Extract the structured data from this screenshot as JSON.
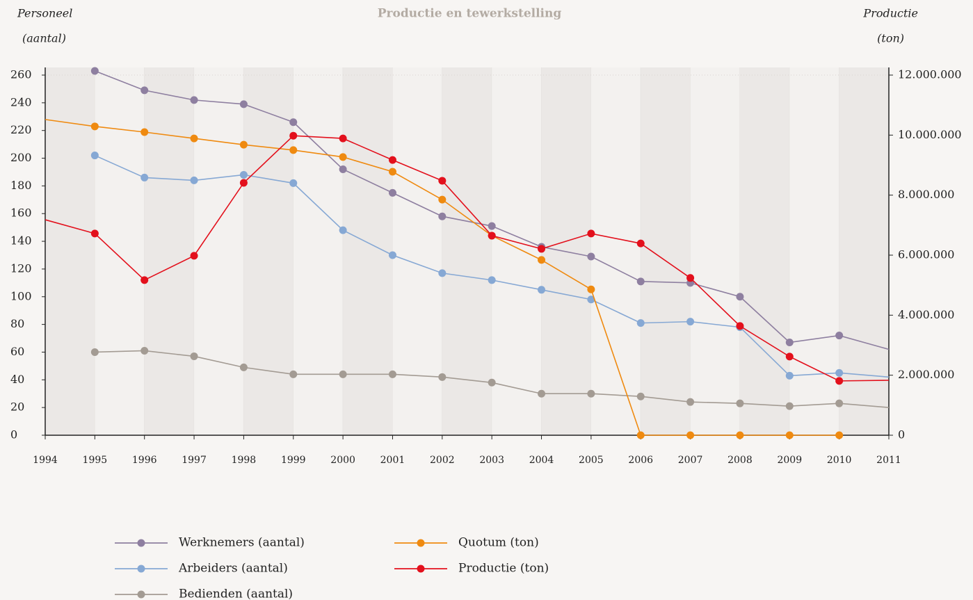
{
  "chart_data": {
    "type": "line",
    "title": "Productie en tewerkstelling",
    "y_label": [
      "Personeel",
      "(aantal)"
    ],
    "y2_label": [
      "Productie",
      "(ton)"
    ],
    "x": [
      1994,
      1995,
      1996,
      1997,
      1998,
      1999,
      2000,
      2001,
      2002,
      2003,
      2004,
      2005,
      2006,
      2007,
      2008,
      2009,
      2010,
      2011
    ],
    "xlim": [
      1994,
      2011
    ],
    "xticks": [
      1994,
      1995,
      1996,
      1997,
      1998,
      1999,
      2000,
      2001,
      2002,
      2003,
      2004,
      2005,
      2006,
      2007,
      2008,
      2009,
      2010,
      2011
    ],
    "ylim": [
      0,
      260
    ],
    "yticks": [
      0,
      20,
      40,
      60,
      80,
      100,
      120,
      140,
      160,
      180,
      200,
      220,
      240,
      260
    ],
    "y2lim": [
      0,
      12000000
    ],
    "y2ticks": [
      {
        "value": 0,
        "label": "0"
      },
      {
        "value": 2000000,
        "label": "2.000.000"
      },
      {
        "value": 4000000,
        "label": "4.000.000"
      },
      {
        "value": 6000000,
        "label": "6.000.000"
      },
      {
        "value": 8000000,
        "label": "8.000.000"
      },
      {
        "value": 10000000,
        "label": "10.000.000"
      },
      {
        "value": 12000000,
        "label": "12.000.000"
      }
    ],
    "legend": "bottom",
    "series": [
      {
        "name": "Werknemers (aantal)",
        "color": "#8e7fa0",
        "values": [
          null,
          263,
          249,
          242,
          239,
          226,
          192,
          175,
          158,
          151,
          136,
          129,
          111,
          110,
          100,
          67,
          72,
          62
        ]
      },
      {
        "name": "Arbeiders (aantal)",
        "color": "#86a8d4",
        "values": [
          null,
          202,
          186,
          184,
          188,
          182,
          148,
          130,
          117,
          112,
          105,
          98,
          81,
          82,
          78,
          43,
          45,
          42
        ]
      },
      {
        "name": "Bedienden (aantal)",
        "color": "#a39b93",
        "values": [
          null,
          60,
          61,
          57,
          49,
          44,
          44,
          44,
          42,
          38,
          30,
          30,
          28,
          24,
          23,
          21,
          23,
          20
        ]
      },
      {
        "name": "Quotum (ton)",
        "color": "#ef8a10",
        "axis": "y2",
        "values": [
          10520000,
          10290000,
          10100000,
          9890000,
          9680000,
          9500000,
          9270000,
          8780000,
          7850000,
          6650000,
          5840000,
          4860000,
          0,
          0,
          0,
          0,
          0,
          null
        ]
      },
      {
        "name": "Productie (ton)",
        "color": "#e3101c",
        "axis": "y2",
        "values": [
          7180000,
          6720000,
          5170000,
          5980000,
          8410000,
          9980000,
          9890000,
          9170000,
          8480000,
          6650000,
          6210000,
          6720000,
          6390000,
          5240000,
          3640000,
          2620000,
          1810000,
          1830000
        ]
      }
    ]
  }
}
